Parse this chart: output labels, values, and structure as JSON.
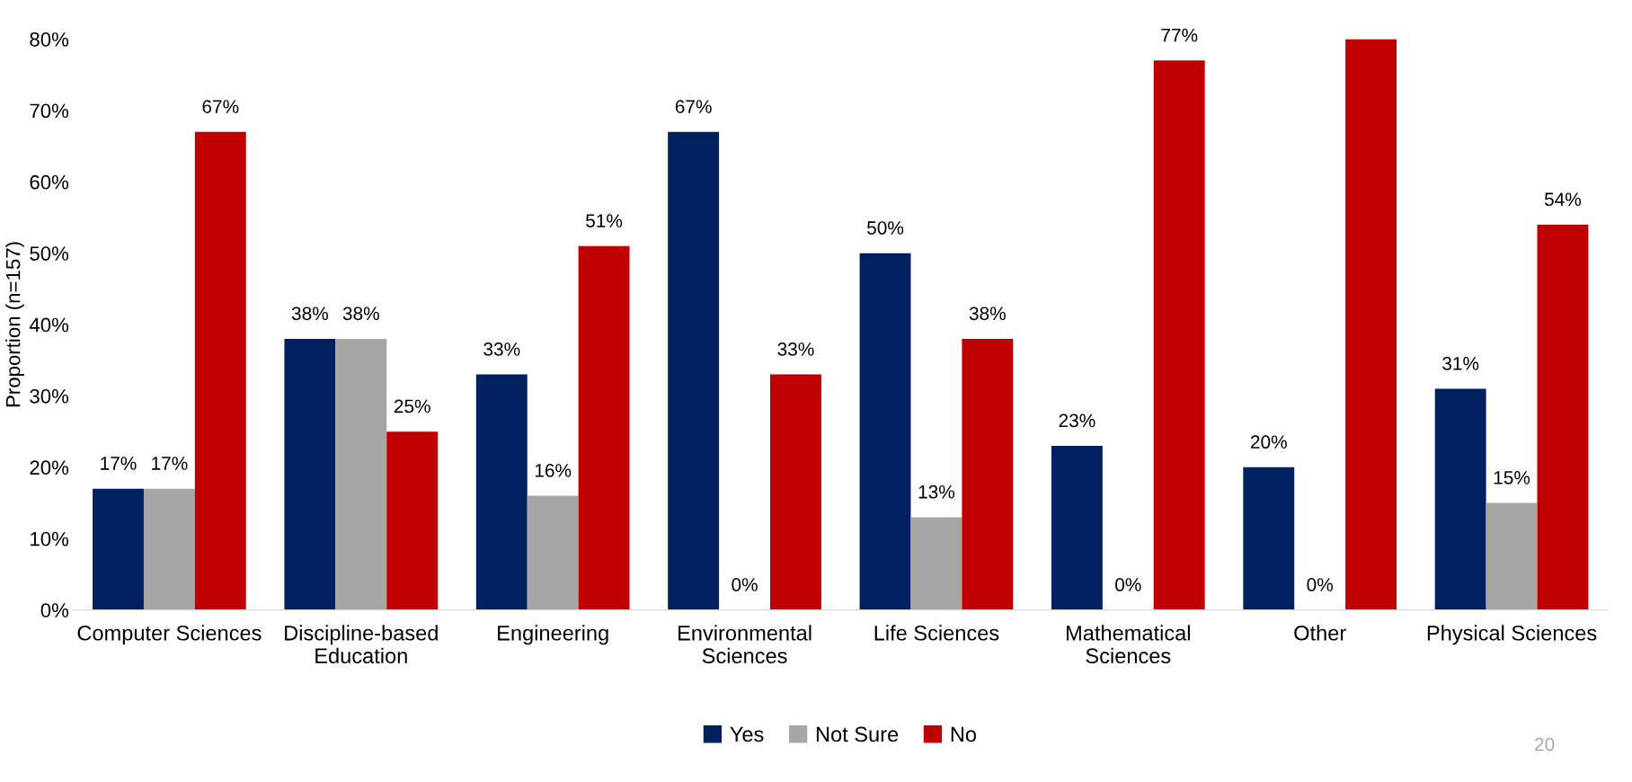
{
  "chart_data": {
    "type": "bar",
    "ylabel": "Proportion (n=157)",
    "categories": [
      "Computer Sciences",
      "Discipline-based\nEducation",
      "Engineering",
      "Environmental\nSciences",
      "Life Sciences",
      "Mathematical\nSciences",
      "Other",
      "Physical Sciences"
    ],
    "series": [
      {
        "name": "Yes",
        "color": "#002060",
        "values": [
          17,
          38,
          33,
          67,
          50,
          23,
          20,
          31
        ],
        "value_labels": [
          "17%",
          "38%",
          "33%",
          "67%",
          "50%",
          "23%",
          "20%",
          "31%"
        ]
      },
      {
        "name": "Not Sure",
        "color": "#a6a6a6",
        "values": [
          17,
          38,
          16,
          0,
          13,
          0,
          0,
          15
        ],
        "value_labels": [
          "17%",
          "38%",
          "16%",
          "0%",
          "13%",
          "0%",
          "0%",
          "15%"
        ]
      },
      {
        "name": "No",
        "color": "#c00000",
        "values": [
          67,
          25,
          51,
          33,
          38,
          77,
          80,
          54
        ],
        "value_labels": [
          "67%",
          "25%",
          "51%",
          "33%",
          "38%",
          "77%",
          null,
          "54%"
        ]
      }
    ],
    "ylim": [
      0,
      80
    ],
    "yticks": [
      {
        "value": 0,
        "label": "0%"
      },
      {
        "value": 10,
        "label": "10%"
      },
      {
        "value": 20,
        "label": "20%"
      },
      {
        "value": 30,
        "label": "30%"
      },
      {
        "value": 40,
        "label": "40%"
      },
      {
        "value": 50,
        "label": "50%"
      },
      {
        "value": 60,
        "label": "60%"
      },
      {
        "value": 70,
        "label": "70%"
      },
      {
        "value": 80,
        "label": "80%"
      }
    ],
    "grid": false,
    "legend": "bottom",
    "annotations": [
      "20"
    ]
  }
}
